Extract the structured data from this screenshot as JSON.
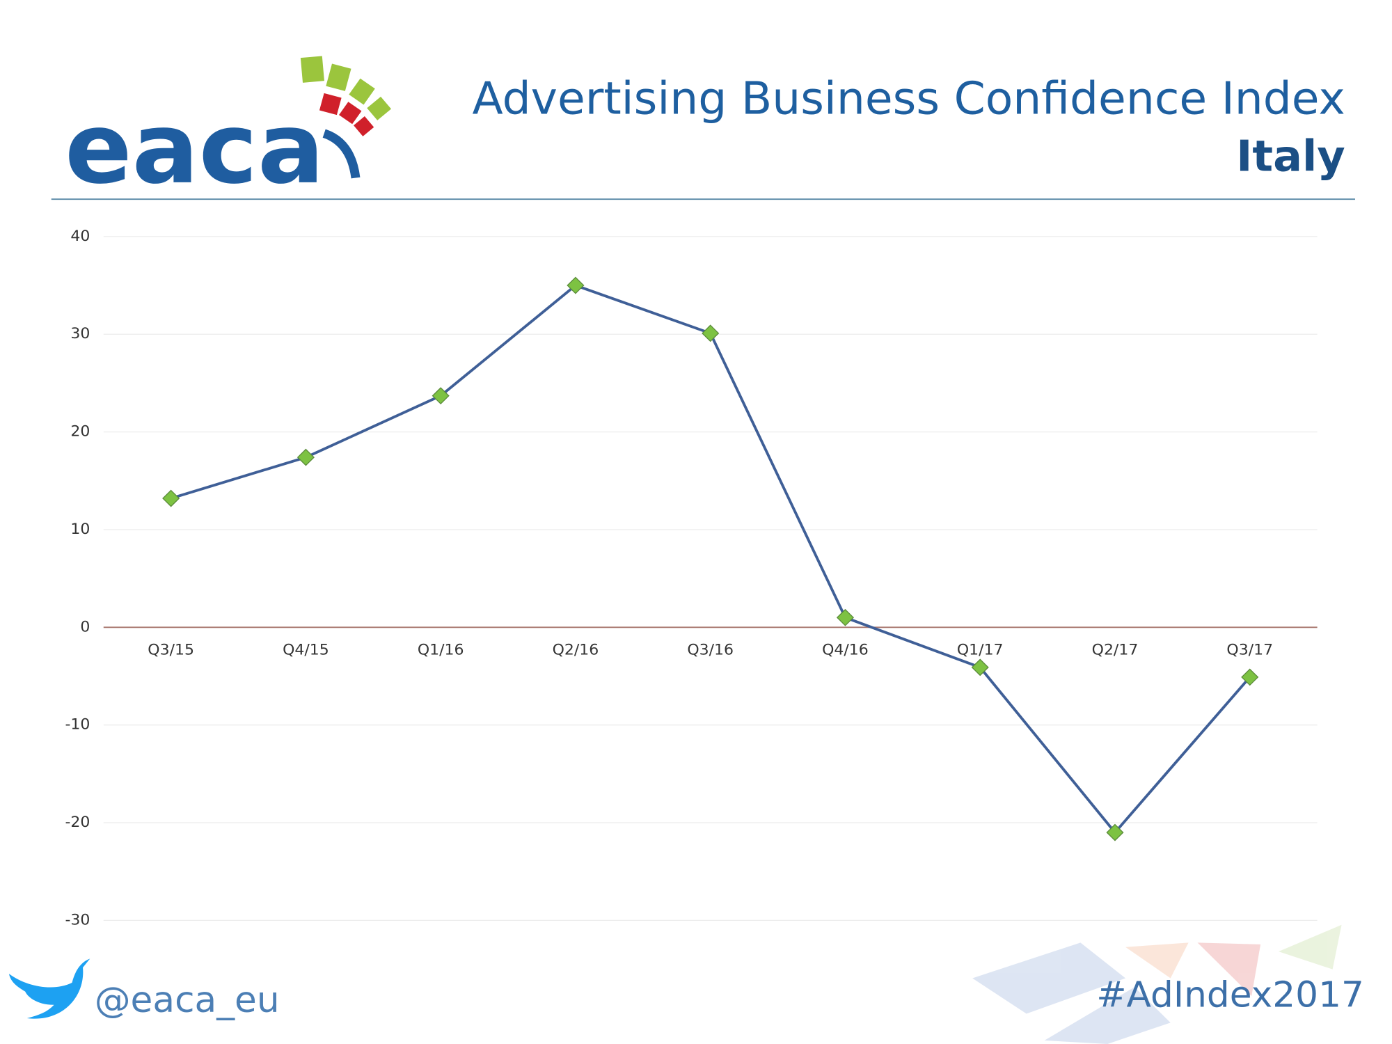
{
  "logo": "eaca",
  "chart_data": {
    "type": "line",
    "title": "Advertising Business Confidence Index",
    "subtitle": "Italy",
    "categories": [
      "Q3/15",
      "Q4/15",
      "Q1/16",
      "Q2/16",
      "Q3/16",
      "Q4/16",
      "Q1/17",
      "Q2/17",
      "Q3/17"
    ],
    "series": [
      {
        "name": "Italy",
        "color": "#3f5f97",
        "marker_color": "#7dc242",
        "values": [
          13.2,
          17.4,
          23.7,
          35.0,
          30.1,
          1.0,
          -4.1,
          -21.0,
          -5.1
        ]
      }
    ],
    "ylim": [
      -30,
      40
    ],
    "yticks": [
      -30,
      -20,
      -10,
      0,
      10,
      20,
      30,
      40
    ],
    "grid": true
  },
  "footer": {
    "twitter": "@eaca_eu",
    "hashtag": "#AdIndex2017"
  }
}
